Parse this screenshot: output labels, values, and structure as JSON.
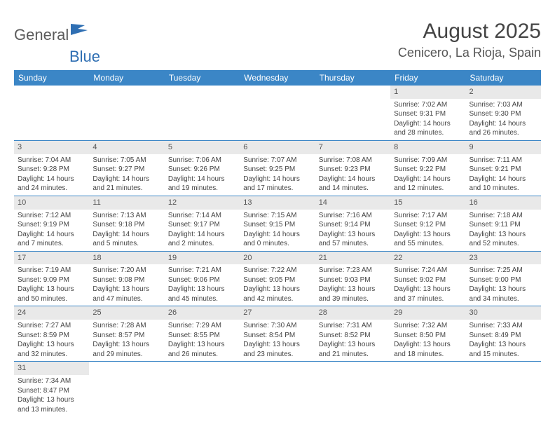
{
  "logo": {
    "part1": "General",
    "part2": "Blue"
  },
  "title": "August 2025",
  "location": "Cenicero, La Rioja, Spain",
  "colors": {
    "header_bg": "#3b86c6",
    "header_text": "#ffffff",
    "daynum_bg": "#e9e9e9",
    "row_border": "#3b86c6",
    "logo_gray": "#5b5b5b",
    "logo_blue": "#2f6fb3"
  },
  "weekdays": [
    "Sunday",
    "Monday",
    "Tuesday",
    "Wednesday",
    "Thursday",
    "Friday",
    "Saturday"
  ],
  "weeks": [
    [
      null,
      null,
      null,
      null,
      null,
      {
        "n": "1",
        "sr": "Sunrise: 7:02 AM",
        "ss": "Sunset: 9:31 PM",
        "d1": "Daylight: 14 hours",
        "d2": "and 28 minutes."
      },
      {
        "n": "2",
        "sr": "Sunrise: 7:03 AM",
        "ss": "Sunset: 9:30 PM",
        "d1": "Daylight: 14 hours",
        "d2": "and 26 minutes."
      }
    ],
    [
      {
        "n": "3",
        "sr": "Sunrise: 7:04 AM",
        "ss": "Sunset: 9:28 PM",
        "d1": "Daylight: 14 hours",
        "d2": "and 24 minutes."
      },
      {
        "n": "4",
        "sr": "Sunrise: 7:05 AM",
        "ss": "Sunset: 9:27 PM",
        "d1": "Daylight: 14 hours",
        "d2": "and 21 minutes."
      },
      {
        "n": "5",
        "sr": "Sunrise: 7:06 AM",
        "ss": "Sunset: 9:26 PM",
        "d1": "Daylight: 14 hours",
        "d2": "and 19 minutes."
      },
      {
        "n": "6",
        "sr": "Sunrise: 7:07 AM",
        "ss": "Sunset: 9:25 PM",
        "d1": "Daylight: 14 hours",
        "d2": "and 17 minutes."
      },
      {
        "n": "7",
        "sr": "Sunrise: 7:08 AM",
        "ss": "Sunset: 9:23 PM",
        "d1": "Daylight: 14 hours",
        "d2": "and 14 minutes."
      },
      {
        "n": "8",
        "sr": "Sunrise: 7:09 AM",
        "ss": "Sunset: 9:22 PM",
        "d1": "Daylight: 14 hours",
        "d2": "and 12 minutes."
      },
      {
        "n": "9",
        "sr": "Sunrise: 7:11 AM",
        "ss": "Sunset: 9:21 PM",
        "d1": "Daylight: 14 hours",
        "d2": "and 10 minutes."
      }
    ],
    [
      {
        "n": "10",
        "sr": "Sunrise: 7:12 AM",
        "ss": "Sunset: 9:19 PM",
        "d1": "Daylight: 14 hours",
        "d2": "and 7 minutes."
      },
      {
        "n": "11",
        "sr": "Sunrise: 7:13 AM",
        "ss": "Sunset: 9:18 PM",
        "d1": "Daylight: 14 hours",
        "d2": "and 5 minutes."
      },
      {
        "n": "12",
        "sr": "Sunrise: 7:14 AM",
        "ss": "Sunset: 9:17 PM",
        "d1": "Daylight: 14 hours",
        "d2": "and 2 minutes."
      },
      {
        "n": "13",
        "sr": "Sunrise: 7:15 AM",
        "ss": "Sunset: 9:15 PM",
        "d1": "Daylight: 14 hours",
        "d2": "and 0 minutes."
      },
      {
        "n": "14",
        "sr": "Sunrise: 7:16 AM",
        "ss": "Sunset: 9:14 PM",
        "d1": "Daylight: 13 hours",
        "d2": "and 57 minutes."
      },
      {
        "n": "15",
        "sr": "Sunrise: 7:17 AM",
        "ss": "Sunset: 9:12 PM",
        "d1": "Daylight: 13 hours",
        "d2": "and 55 minutes."
      },
      {
        "n": "16",
        "sr": "Sunrise: 7:18 AM",
        "ss": "Sunset: 9:11 PM",
        "d1": "Daylight: 13 hours",
        "d2": "and 52 minutes."
      }
    ],
    [
      {
        "n": "17",
        "sr": "Sunrise: 7:19 AM",
        "ss": "Sunset: 9:09 PM",
        "d1": "Daylight: 13 hours",
        "d2": "and 50 minutes."
      },
      {
        "n": "18",
        "sr": "Sunrise: 7:20 AM",
        "ss": "Sunset: 9:08 PM",
        "d1": "Daylight: 13 hours",
        "d2": "and 47 minutes."
      },
      {
        "n": "19",
        "sr": "Sunrise: 7:21 AM",
        "ss": "Sunset: 9:06 PM",
        "d1": "Daylight: 13 hours",
        "d2": "and 45 minutes."
      },
      {
        "n": "20",
        "sr": "Sunrise: 7:22 AM",
        "ss": "Sunset: 9:05 PM",
        "d1": "Daylight: 13 hours",
        "d2": "and 42 minutes."
      },
      {
        "n": "21",
        "sr": "Sunrise: 7:23 AM",
        "ss": "Sunset: 9:03 PM",
        "d1": "Daylight: 13 hours",
        "d2": "and 39 minutes."
      },
      {
        "n": "22",
        "sr": "Sunrise: 7:24 AM",
        "ss": "Sunset: 9:02 PM",
        "d1": "Daylight: 13 hours",
        "d2": "and 37 minutes."
      },
      {
        "n": "23",
        "sr": "Sunrise: 7:25 AM",
        "ss": "Sunset: 9:00 PM",
        "d1": "Daylight: 13 hours",
        "d2": "and 34 minutes."
      }
    ],
    [
      {
        "n": "24",
        "sr": "Sunrise: 7:27 AM",
        "ss": "Sunset: 8:59 PM",
        "d1": "Daylight: 13 hours",
        "d2": "and 32 minutes."
      },
      {
        "n": "25",
        "sr": "Sunrise: 7:28 AM",
        "ss": "Sunset: 8:57 PM",
        "d1": "Daylight: 13 hours",
        "d2": "and 29 minutes."
      },
      {
        "n": "26",
        "sr": "Sunrise: 7:29 AM",
        "ss": "Sunset: 8:55 PM",
        "d1": "Daylight: 13 hours",
        "d2": "and 26 minutes."
      },
      {
        "n": "27",
        "sr": "Sunrise: 7:30 AM",
        "ss": "Sunset: 8:54 PM",
        "d1": "Daylight: 13 hours",
        "d2": "and 23 minutes."
      },
      {
        "n": "28",
        "sr": "Sunrise: 7:31 AM",
        "ss": "Sunset: 8:52 PM",
        "d1": "Daylight: 13 hours",
        "d2": "and 21 minutes."
      },
      {
        "n": "29",
        "sr": "Sunrise: 7:32 AM",
        "ss": "Sunset: 8:50 PM",
        "d1": "Daylight: 13 hours",
        "d2": "and 18 minutes."
      },
      {
        "n": "30",
        "sr": "Sunrise: 7:33 AM",
        "ss": "Sunset: 8:49 PM",
        "d1": "Daylight: 13 hours",
        "d2": "and 15 minutes."
      }
    ],
    [
      {
        "n": "31",
        "sr": "Sunrise: 7:34 AM",
        "ss": "Sunset: 8:47 PM",
        "d1": "Daylight: 13 hours",
        "d2": "and 13 minutes."
      },
      null,
      null,
      null,
      null,
      null,
      null
    ]
  ]
}
